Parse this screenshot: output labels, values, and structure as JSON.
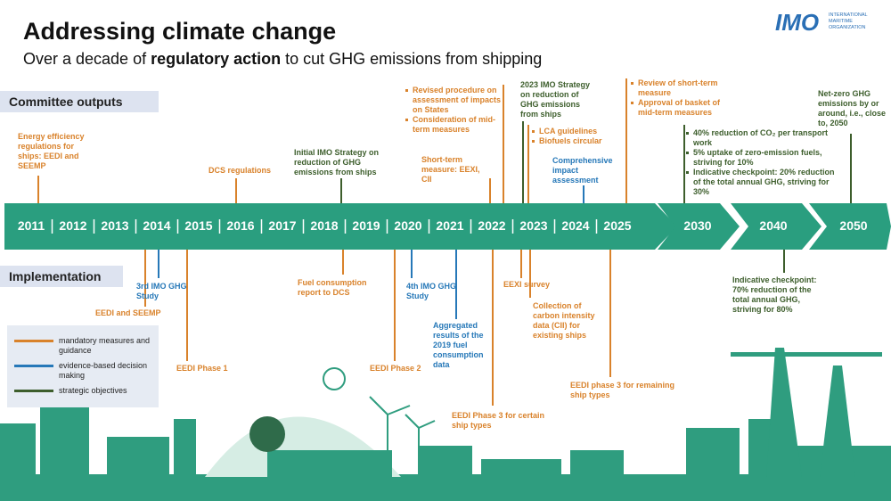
{
  "header": {
    "title": "Addressing climate change",
    "subtitle": {
      "before": "Over a decade of ",
      "bold": "regulatory action",
      "after": " to cut GHG emissions from shipping"
    }
  },
  "logo": {
    "mark": "IMO",
    "name": "INTERNATIONAL MARITIME ORGANIZATION"
  },
  "sections": {
    "top": "Committee outputs",
    "bottom": "Implementation"
  },
  "timeline": {
    "years": [
      "2011",
      "2012",
      "2013",
      "2014",
      "2015",
      "2016",
      "2017",
      "2018",
      "2019",
      "2020",
      "2021",
      "2022",
      "2023",
      "2024",
      "2025"
    ],
    "future": [
      "2030",
      "2040",
      "2050"
    ]
  },
  "legend": [
    {
      "label": "mandatory measures and guidance",
      "color": "#d9822b"
    },
    {
      "label": "evidence-based decision making",
      "color": "#2678b8"
    },
    {
      "label": "strategic objectives",
      "color": "#3d5e2c"
    }
  ],
  "committee_outputs": [
    {
      "text": "Energy efficiency regulations for ships: EEDI and SEEMP",
      "color": "#d9822b"
    },
    {
      "text": "DCS regulations",
      "color": "#d9822b"
    },
    {
      "text": "Initial IMO Strategy on reduction of GHG emissions from ships",
      "color": "#3d5e2c"
    },
    {
      "items": [
        "Revised procedure on assessment of impacts on States",
        "Consideration of mid-term measures"
      ],
      "color": "#d9822b"
    },
    {
      "text": "Short-term measure: EEXI, CII",
      "color": "#d9822b"
    },
    {
      "text": "2023 IMO Strategy on reduction of GHG emissions from ships",
      "color": "#3d5e2c"
    },
    {
      "items": [
        "LCA guidelines",
        "Biofuels circular"
      ],
      "color": "#d9822b"
    },
    {
      "text": "Comprehensive impact assessment",
      "color": "#2678b8"
    },
    {
      "items": [
        "Review of short-term measure",
        "Approval of basket of mid-term measures"
      ],
      "color": "#d9822b"
    },
    {
      "items": [
        "40% reduction of CO₂ per transport work",
        "5% uptake of zero-emission fuels, striving for 10%",
        "Indicative checkpoint: 20% reduction of the total annual GHG, striving for 30%"
      ],
      "color": "#3d5e2c"
    },
    {
      "text": "Net-zero GHG emissions by or around, i.e., close to, 2050",
      "color": "#3d5e2c"
    }
  ],
  "implementation": [
    {
      "text": "EEDI and SEEMP",
      "color": "#d9822b"
    },
    {
      "text": "3rd IMO GHG Study",
      "color": "#2678b8"
    },
    {
      "text": "EEDI Phase 1",
      "color": "#d9822b"
    },
    {
      "text": "Fuel consumption report to DCS",
      "color": "#d9822b"
    },
    {
      "text": "EEDI Phase 2",
      "color": "#d9822b"
    },
    {
      "text": "4th IMO GHG Study",
      "color": "#2678b8"
    },
    {
      "text": "Aggregated results of the 2019 fuel consumption data",
      "color": "#2678b8"
    },
    {
      "text": "EEDI Phase 3 for certain ship types",
      "color": "#d9822b"
    },
    {
      "text": "EEXI survey",
      "color": "#d9822b"
    },
    {
      "text": "Collection of carbon intensity data (CII) for existing ships",
      "color": "#d9822b"
    },
    {
      "text": "EEDI phase 3 for remaining ship types",
      "color": "#d9822b"
    },
    {
      "text": "Indicative checkpoint: 70% reduction of the total annual GHG, striving for 80%",
      "color": "#3d5e2c"
    }
  ]
}
